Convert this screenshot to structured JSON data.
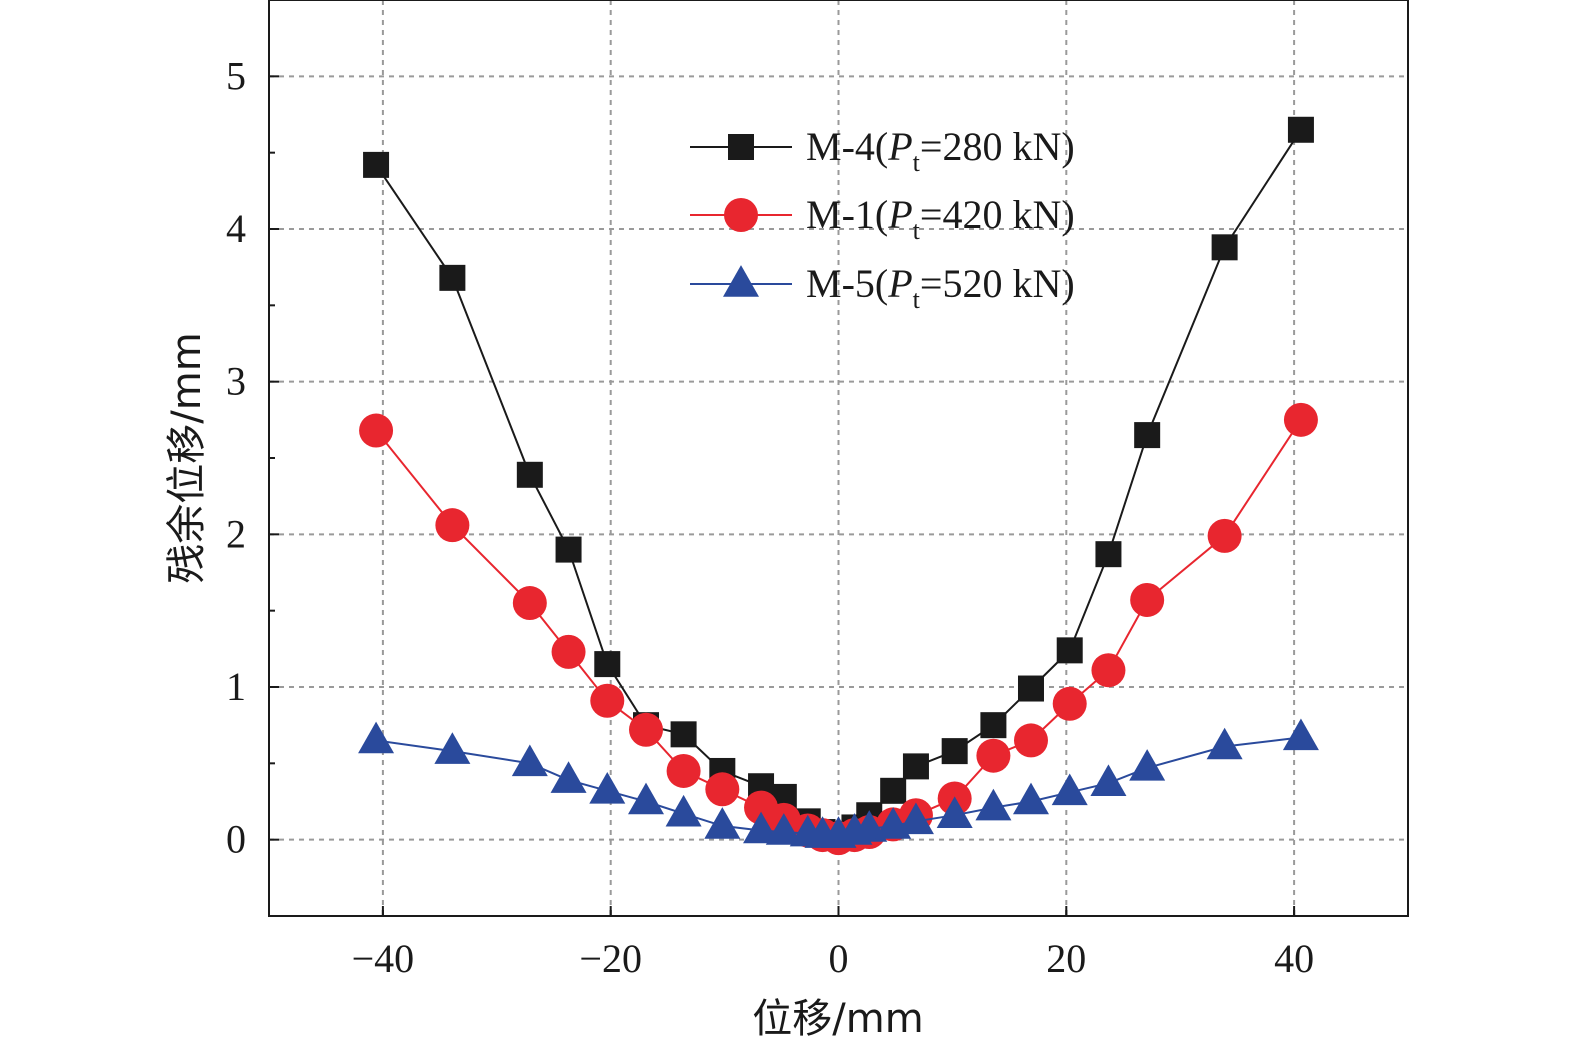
{
  "chart_data": {
    "type": "line",
    "xlabel": "位移/mm",
    "ylabel": "残余位移/mm",
    "xlim": [
      -50,
      50
    ],
    "ylim": [
      -0.5,
      5.5
    ],
    "xticks": [
      -40,
      -20,
      0,
      20,
      40
    ],
    "xtick_labels": [
      "−40",
      "−20",
      "0",
      "20",
      "40"
    ],
    "yticks": [
      0,
      1,
      2,
      3,
      4,
      5
    ],
    "ytick_labels": [
      "0",
      "1",
      "2",
      "3",
      "4",
      "5"
    ],
    "grid": true,
    "legend_position": "top-right",
    "series": [
      {
        "legend_prefix": "M-4(",
        "legend_italic": "P",
        "legend_sub": "t",
        "legend_suffix": "=280 kN)",
        "color": "#1a1a1a",
        "marker": "square",
        "x": [
          -40.6,
          -33.9,
          -27.1,
          -23.7,
          -20.3,
          -16.9,
          -13.6,
          -10.2,
          -6.8,
          -4.8,
          -2.7,
          -1.4,
          0,
          1.4,
          2.7,
          4.8,
          6.8,
          10.2,
          13.6,
          16.9,
          20.3,
          23.7,
          27.1,
          33.9,
          40.6
        ],
        "y": [
          4.42,
          3.68,
          2.39,
          1.9,
          1.15,
          0.75,
          0.69,
          0.45,
          0.35,
          0.28,
          0.12,
          0.05,
          0.02,
          0.08,
          0.16,
          0.32,
          0.48,
          0.58,
          0.75,
          0.99,
          1.24,
          1.87,
          2.65,
          3.88,
          4.65
        ]
      },
      {
        "legend_prefix": "M-1(",
        "legend_italic": "P",
        "legend_sub": "t",
        "legend_suffix": "=420 kN)",
        "color": "#e8262f",
        "marker": "circle",
        "x": [
          -40.6,
          -33.9,
          -27.1,
          -23.7,
          -20.3,
          -16.9,
          -13.6,
          -10.2,
          -6.8,
          -4.8,
          -2.7,
          -1.4,
          0,
          1.4,
          2.7,
          4.8,
          6.8,
          10.2,
          13.6,
          16.9,
          20.3,
          23.7,
          27.1,
          33.9,
          40.6
        ],
        "y": [
          2.68,
          2.06,
          1.55,
          1.23,
          0.91,
          0.72,
          0.45,
          0.33,
          0.21,
          0.13,
          0.06,
          0.03,
          0.01,
          0.03,
          0.05,
          0.1,
          0.16,
          0.27,
          0.55,
          0.65,
          0.89,
          1.11,
          1.57,
          1.99,
          2.75
        ]
      },
      {
        "legend_prefix": "M-5(",
        "legend_italic": "P",
        "legend_sub": "t",
        "legend_suffix": "=520 kN)",
        "color": "#2a4a9c",
        "marker": "triangle",
        "x": [
          -40.6,
          -33.9,
          -27.1,
          -23.7,
          -20.3,
          -16.9,
          -13.6,
          -10.2,
          -6.8,
          -4.8,
          -2.7,
          -1.4,
          0,
          1.4,
          2.7,
          4.8,
          6.8,
          10.2,
          13.6,
          16.9,
          20.3,
          23.7,
          27.1,
          33.9,
          40.6
        ],
        "y": [
          0.65,
          0.58,
          0.5,
          0.39,
          0.32,
          0.25,
          0.17,
          0.09,
          0.06,
          0.05,
          0.04,
          0.03,
          0.03,
          0.05,
          0.07,
          0.09,
          0.12,
          0.16,
          0.21,
          0.25,
          0.31,
          0.37,
          0.47,
          0.61,
          0.67
        ]
      }
    ]
  }
}
